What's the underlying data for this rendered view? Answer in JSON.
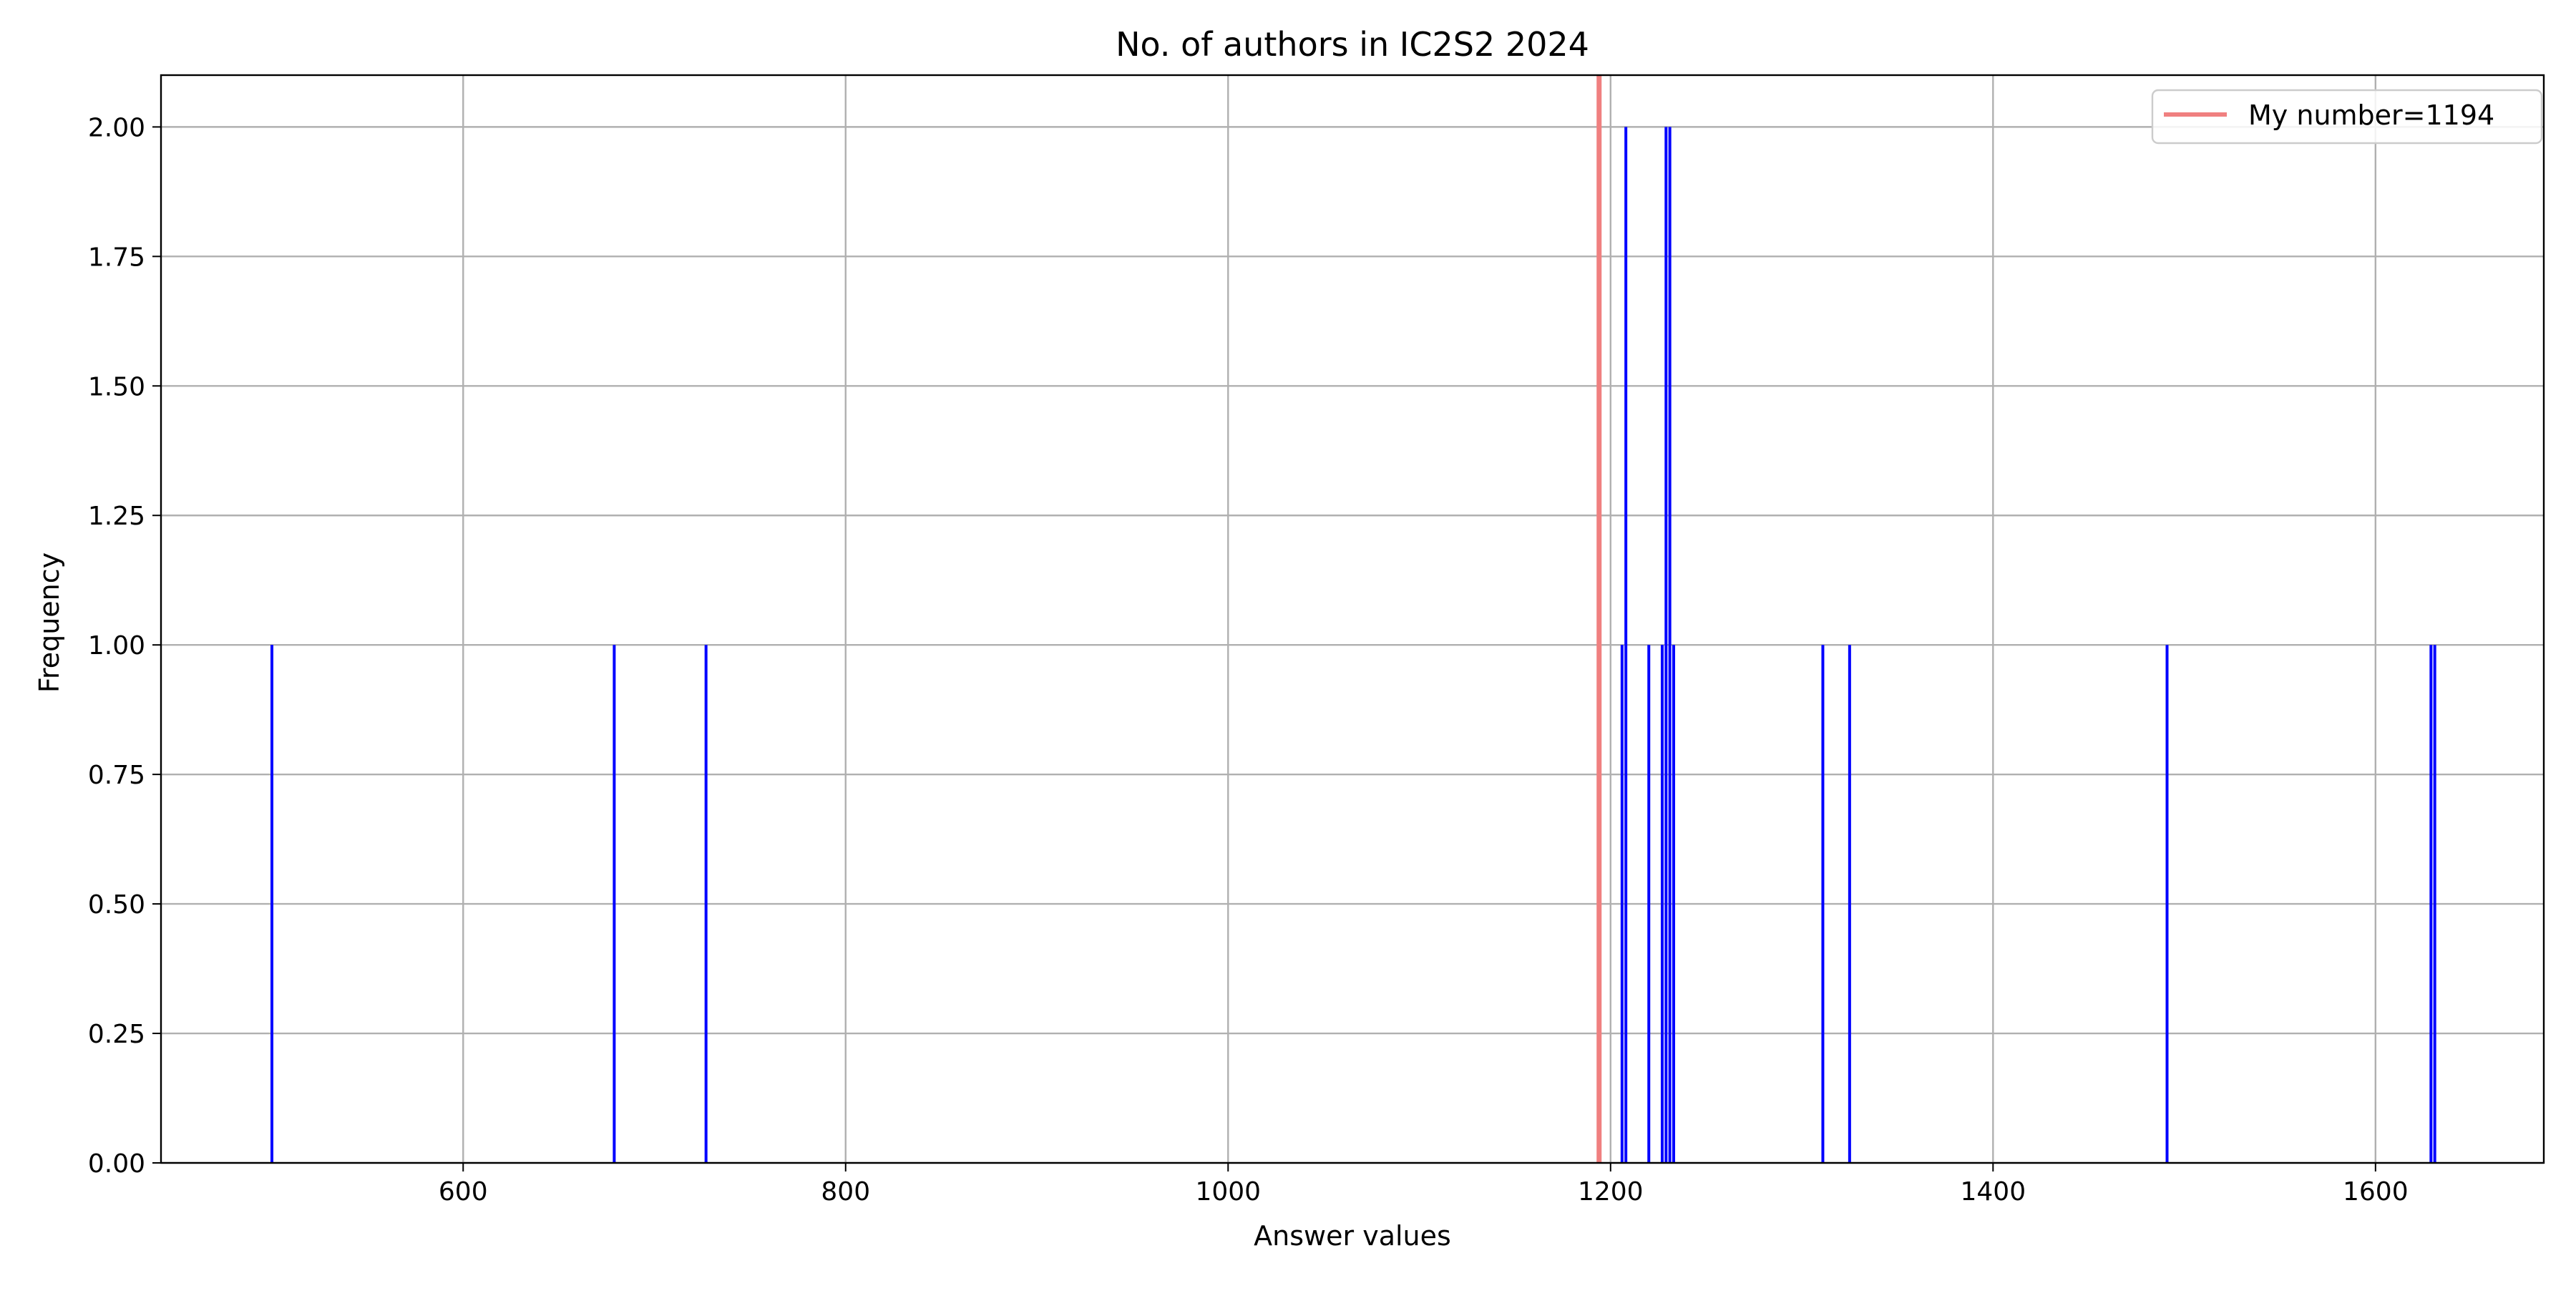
{
  "chart_data": {
    "type": "bar",
    "title": "No. of authors in IC2S2 2024",
    "xlabel": "Answer values",
    "ylabel": "Frequency",
    "xlim": [
      442,
      1688
    ],
    "ylim": [
      0,
      2.1
    ],
    "grid": true,
    "x_ticks": [
      600,
      800,
      1000,
      1200,
      1400,
      1600
    ],
    "y_ticks": [
      0.0,
      0.25,
      0.5,
      0.75,
      1.0,
      1.25,
      1.5,
      1.75,
      2.0
    ],
    "x_tick_labels": [
      "600",
      "800",
      "1000",
      "1200",
      "1400",
      "1600"
    ],
    "y_tick_labels": [
      "0.00",
      "0.25",
      "0.50",
      "0.75",
      "1.00",
      "1.25",
      "1.50",
      "1.75",
      "2.00"
    ],
    "bars": [
      {
        "x": 500,
        "value": 1
      },
      {
        "x": 679,
        "value": 1
      },
      {
        "x": 727,
        "value": 1
      },
      {
        "x": 1206,
        "value": 1
      },
      {
        "x": 1208,
        "value": 2
      },
      {
        "x": 1220,
        "value": 1
      },
      {
        "x": 1227,
        "value": 1
      },
      {
        "x": 1229,
        "value": 2
      },
      {
        "x": 1231,
        "value": 2
      },
      {
        "x": 1233,
        "value": 1
      },
      {
        "x": 1311,
        "value": 1
      },
      {
        "x": 1325,
        "value": 1
      },
      {
        "x": 1491,
        "value": 1
      },
      {
        "x": 1629,
        "value": 1
      },
      {
        "x": 1631,
        "value": 1
      }
    ],
    "bar_color": "#0000ff",
    "reference_line": {
      "x": 1194,
      "label": "My number=1194",
      "color": "#f08080"
    },
    "legend": {
      "position": "top-right",
      "entries": [
        "My number=1194"
      ]
    }
  }
}
